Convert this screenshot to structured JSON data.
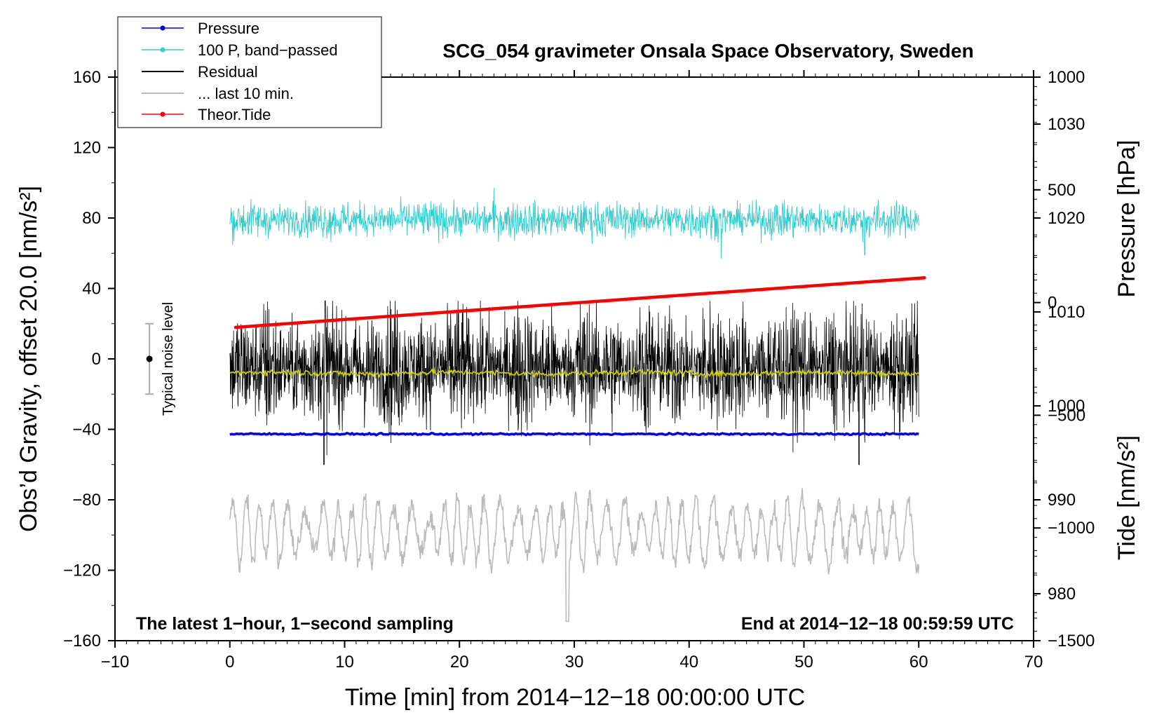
{
  "chart_data": {
    "type": "line",
    "title": "SCG_054 gravimeter Onsala Space Observatory, Sweden",
    "xlabel": "Time [min] from 2014−12−18 00:00:00 UTC",
    "ylabel_left": "Obs’d Gravity, offset 20.0 [nm/s²]",
    "ylabel_right_top": "Pressure [hPa]",
    "ylabel_right_bottom": "Tide [nm/s²]",
    "xlim": [
      -10,
      70
    ],
    "ylim_left": [
      -160,
      160
    ],
    "pressure_range": [
      975,
      1035
    ],
    "tide_range": [
      -1500,
      1000
    ],
    "x_ticks": [
      -10,
      0,
      10,
      20,
      30,
      40,
      50,
      60,
      70
    ],
    "x_tick_labels": [
      "−10",
      "0",
      "10",
      "20",
      "30",
      "40",
      "50",
      "60",
      "70"
    ],
    "y_left_ticks": [
      -160,
      -120,
      -80,
      -40,
      0,
      40,
      80,
      120,
      160
    ],
    "y_left_tick_labels": [
      "−160",
      "−120",
      "−80",
      "−40",
      "0",
      "40",
      "80",
      "120",
      "160"
    ],
    "pressure_ticks": [
      980,
      990,
      1000,
      1010,
      1020,
      1030
    ],
    "pressure_tick_labels": [
      "980",
      "990",
      "1000",
      "1010",
      "1020",
      "1030"
    ],
    "tide_ticks": [
      -1500,
      -1000,
      -500,
      0,
      500,
      1000
    ],
    "tide_tick_labels": [
      "−1500",
      "−1000",
      "−500",
      "0",
      "500",
      "1000"
    ],
    "legend": [
      {
        "label": "Pressure",
        "color": "#0000ff",
        "marker": true
      },
      {
        "label": "100 P, band−passed",
        "color": "#33cccc",
        "marker": true
      },
      {
        "label": "Residual",
        "color": "#000000",
        "marker": false
      },
      {
        "label": "... last 10 min.",
        "color": "#bbbbbb",
        "marker": false
      },
      {
        "label": "Theor.Tide",
        "color": "#ff0000",
        "marker": true
      }
    ],
    "legend_position": "top-left",
    "annotations": {
      "bottom_left": "The latest 1−hour, 1−second sampling",
      "bottom_right": "End at 2014−12−18 00:59:59 UTC",
      "noise_label": "Typical noise level"
    },
    "noise_bar": {
      "x": -7,
      "center": 0,
      "half_range": 20
    },
    "series": [
      {
        "name": "Pressure",
        "axis": "pressure",
        "color": "#0000ff",
        "x_range": [
          0,
          60
        ],
        "mean": 997.0,
        "noise": 0.15
      },
      {
        "name": "100 P, band−passed",
        "axis": "left",
        "color": "#33cccc",
        "x_range": [
          0,
          60
        ],
        "mean": 79,
        "amplitude": 6,
        "min": 57,
        "max": 97
      },
      {
        "name": "Residual",
        "axis": "left",
        "color": "#000000",
        "x_range": [
          0,
          60
        ],
        "mean": -5,
        "amplitude": 18,
        "min": -60,
        "max": 33
      },
      {
        "name": "Residual smoothed",
        "axis": "left",
        "color": "#cccc00",
        "x_range": [
          0,
          60
        ],
        "mean": -8
      },
      {
        "name": "... last 10 min.",
        "axis": "left",
        "color": "#bbbbbb",
        "x_range": [
          0,
          60
        ],
        "mean": -98,
        "amplitude": 15,
        "min": -151,
        "max": -61
      },
      {
        "name": "Theor.Tide",
        "axis": "tide",
        "color": "#ff0000",
        "points": [
          [
            0.5,
            -110
          ],
          [
            60.5,
            110
          ]
        ]
      }
    ]
  }
}
